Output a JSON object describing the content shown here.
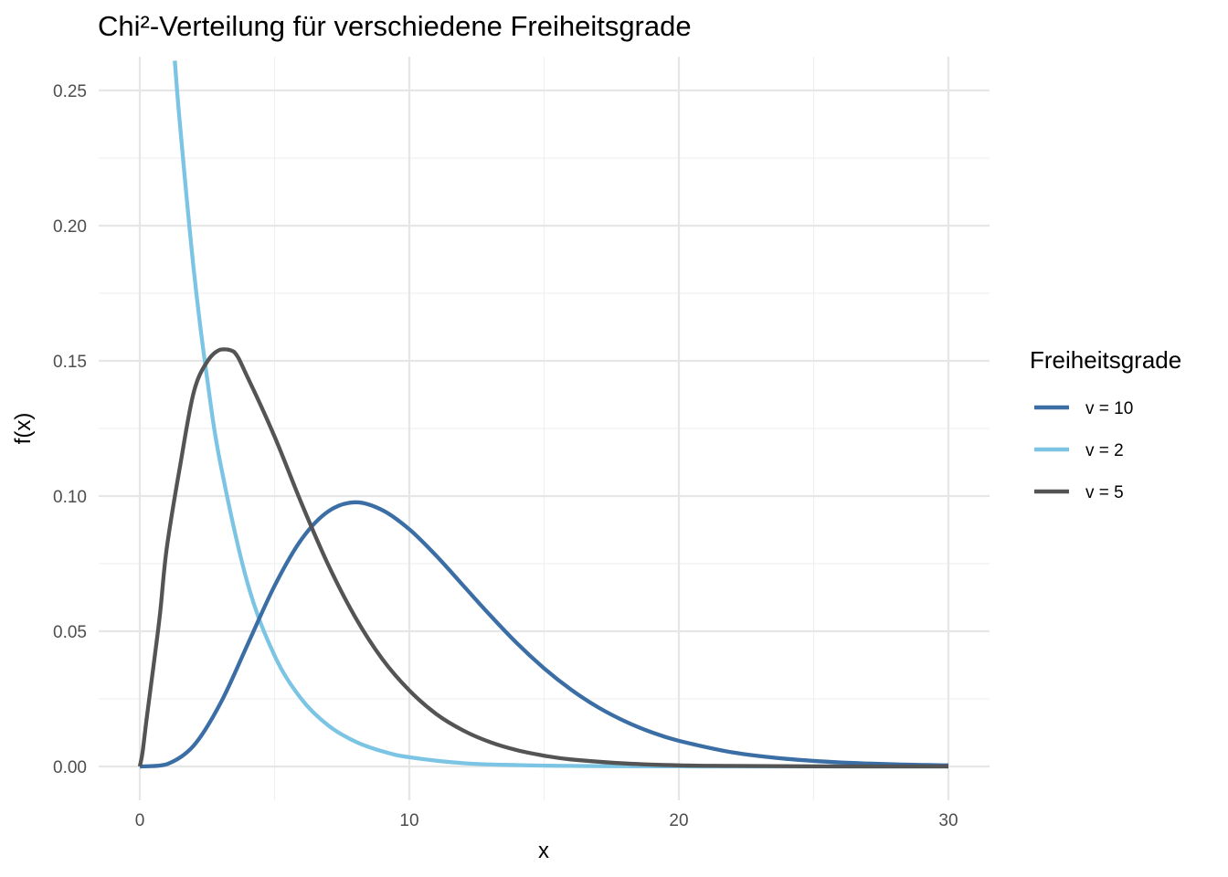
{
  "chart_data": {
    "type": "line",
    "title": "Chi²-Verteilung für verschiedene Freiheitsgrade",
    "xlabel": "x",
    "ylabel": "f(x)",
    "xlim": [
      0,
      30
    ],
    "ylim": [
      0,
      0.26
    ],
    "x_ticks": [
      0,
      10,
      20,
      30
    ],
    "x_tick_labels": [
      "0",
      "10",
      "20",
      "30"
    ],
    "y_ticks": [
      0,
      0.05,
      0.1,
      0.15,
      0.2,
      0.25
    ],
    "y_tick_labels": [
      "0.00",
      "0.05",
      "0.10",
      "0.15",
      "0.20",
      "0.25"
    ],
    "grid": true,
    "legend": {
      "title": "Freiheitsgrade",
      "placement": "right"
    },
    "series": [
      {
        "name": "v = 10",
        "color": "#3a6ea5",
        "x": [
          0,
          1,
          2,
          3,
          4,
          5,
          6,
          7,
          8,
          9,
          10,
          11,
          12,
          13,
          14,
          15,
          16,
          17,
          18,
          19,
          20,
          22,
          24,
          26,
          28,
          30
        ],
        "y": [
          0,
          0.0008,
          0.0077,
          0.0235,
          0.0451,
          0.0668,
          0.084,
          0.0944,
          0.0977,
          0.0948,
          0.0877,
          0.0779,
          0.0669,
          0.0559,
          0.0455,
          0.0363,
          0.0284,
          0.0219,
          0.0167,
          0.0126,
          0.0095,
          0.0052,
          0.0028,
          0.0015,
          0.0008,
          0.0004
        ]
      },
      {
        "name": "v = 2",
        "color": "#7bc4e4",
        "x": [
          1.3,
          1.5,
          2,
          2.5,
          3,
          4,
          5,
          6,
          7,
          8,
          9,
          10,
          12,
          14,
          16,
          18,
          20,
          25,
          30
        ],
        "y": [
          0.261,
          0.2362,
          0.1839,
          0.1433,
          0.1116,
          0.0677,
          0.041,
          0.0249,
          0.0151,
          0.0092,
          0.0056,
          0.0034,
          0.0012,
          0.0005,
          0.0002,
          0.0001,
          2e-05,
          0,
          0
        ]
      },
      {
        "name": "v = 5",
        "color": "#545454",
        "x": [
          0,
          0.1,
          0.25,
          0.5,
          0.75,
          1,
          1.5,
          2,
          2.5,
          3,
          3.5,
          4,
          5,
          6,
          7,
          8,
          9,
          10,
          11,
          12,
          13,
          14,
          15,
          16,
          18,
          20,
          22,
          25,
          30
        ],
        "y": [
          0,
          0.005,
          0.0174,
          0.0366,
          0.0564,
          0.0807,
          0.1115,
          0.1383,
          0.1497,
          0.1542,
          0.1533,
          0.1439,
          0.122,
          0.0973,
          0.0744,
          0.0551,
          0.0397,
          0.0281,
          0.0194,
          0.0133,
          0.009,
          0.006,
          0.004,
          0.0026,
          0.0011,
          0.0004,
          0.0002,
          5e-05,
          0
        ]
      }
    ]
  }
}
